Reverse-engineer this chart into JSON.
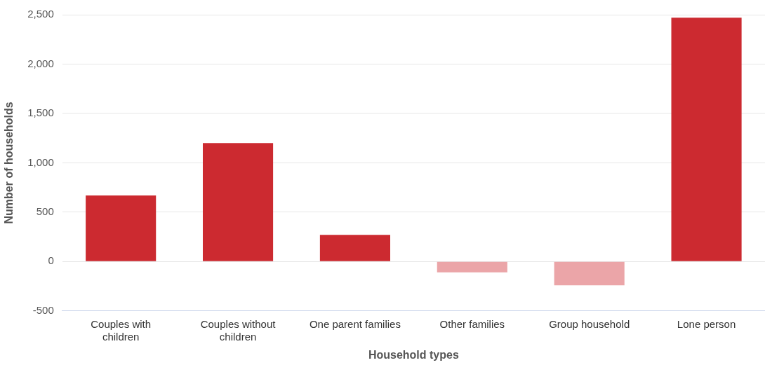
{
  "chart_data": {
    "type": "bar",
    "xlabel": "Household types",
    "ylabel": "Number of households",
    "categories": [
      "Couples with children",
      "Couples without children",
      "One parent families",
      "Other families",
      "Group household",
      "Lone person"
    ],
    "values": [
      670,
      1200,
      270,
      -110,
      -240,
      2470
    ],
    "colors": [
      "#cc2a30",
      "#cc2a30",
      "#cc2a30",
      "#eba5a8",
      "#eba5a8",
      "#cc2a30"
    ],
    "ylim": [
      -500,
      2500
    ],
    "yticks": [
      {
        "value": -500,
        "label": "-500"
      },
      {
        "value": 0,
        "label": "0"
      },
      {
        "value": 500,
        "label": "500"
      },
      {
        "value": 1000,
        "label": "1,000"
      },
      {
        "value": 1500,
        "label": "1,500"
      },
      {
        "value": 2000,
        "label": "2,000"
      },
      {
        "value": 2500,
        "label": "2,500"
      }
    ],
    "grid": "y",
    "legend": false
  }
}
